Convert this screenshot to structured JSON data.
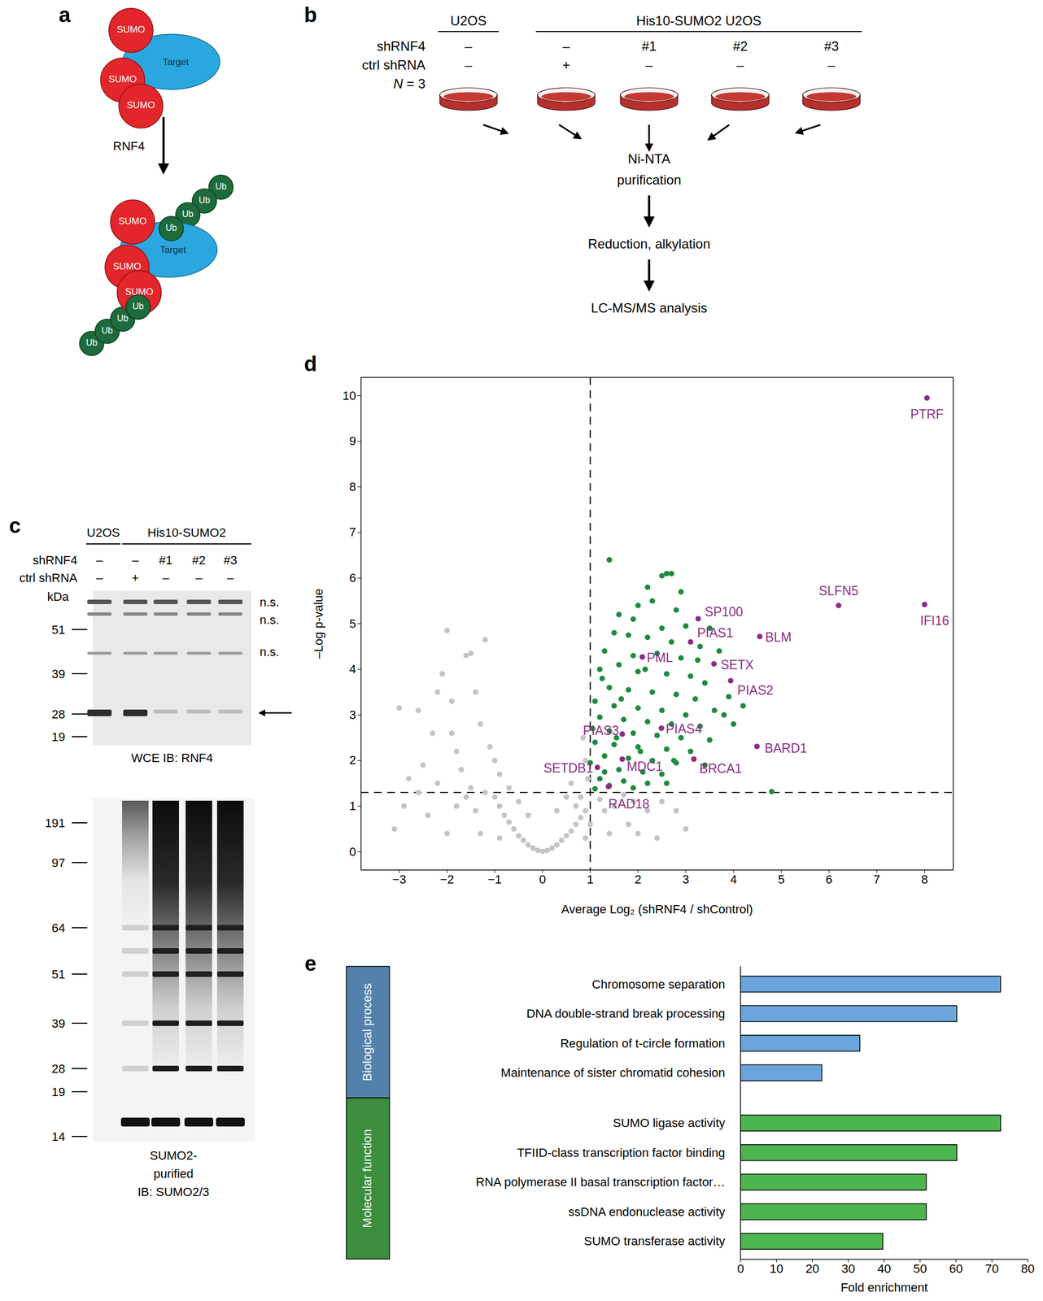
{
  "panel_labels": [
    "a",
    "b",
    "c",
    "d",
    "e"
  ],
  "panel_a": {
    "before": {
      "target": "Target",
      "modifiers": [
        "SUMO",
        "SUMO",
        "SUMO"
      ]
    },
    "enzyme": "RNF4",
    "after": {
      "target": "Target",
      "modifiers": [
        "SUMO",
        "SUMO",
        "SUMO"
      ],
      "ubiquitin_chains": [
        [
          "Ub",
          "Ub",
          "Ub",
          "Ub"
        ],
        [
          "Ub",
          "Ub",
          "Ub",
          "Ub"
        ]
      ]
    }
  },
  "panel_b": {
    "header_groups": [
      {
        "label": "U2OS",
        "lanes": 1
      },
      {
        "label": "His10-SUMO2 U2OS",
        "lanes": 4
      }
    ],
    "rows": [
      {
        "label": "shRNF4",
        "values": [
          "–",
          "–",
          "#1",
          "#2",
          "#3"
        ]
      },
      {
        "label": "ctrl shRNA",
        "values": [
          "–",
          "+",
          "–",
          "–",
          "–"
        ]
      }
    ],
    "replicates": "N = 3",
    "steps": [
      "Ni-NTA\npurification",
      "Reduction, alkylation",
      "LC-MS/MS analysis"
    ]
  },
  "panel_c": {
    "header_groups": [
      {
        "label": "U2OS",
        "lanes": 1
      },
      {
        "label": "His10-SUMO2",
        "lanes": 4
      }
    ],
    "rows": [
      {
        "label": "shRNF4",
        "values": [
          "–",
          "–",
          "#1",
          "#2",
          "#3"
        ]
      },
      {
        "label": "ctrl shRNA",
        "values": [
          "–",
          "+",
          "–",
          "–",
          "–"
        ]
      }
    ],
    "blots": [
      {
        "unit_label": "kDa",
        "markers": [
          51,
          39,
          28,
          19
        ],
        "annotations": [
          "n.s.",
          "n.s.",
          "n.s."
        ],
        "caption": "WCE IB: RNF4"
      },
      {
        "markers": [
          191,
          97,
          64,
          51,
          39,
          28,
          19,
          14
        ],
        "caption": "SUMO2-\npurified\nIB: SUMO2/3"
      }
    ]
  },
  "chart_data": [
    {
      "type": "scatter",
      "xlabel": "Average Log₂ (shRNF4 / shControl)",
      "ylabel": "–Log p-value",
      "xlim": [
        -3.8,
        8.6
      ],
      "ylim": [
        -0.4,
        10.4
      ],
      "xticks": [
        -3,
        -2,
        -1,
        0,
        1,
        2,
        3,
        4,
        5,
        6,
        7,
        8
      ],
      "yticks": [
        0,
        1,
        2,
        3,
        4,
        5,
        6,
        7,
        8,
        9,
        10
      ],
      "thresholds": {
        "x": 1,
        "y": 1.3
      },
      "series": [
        {
          "color": "#c4c4c4",
          "x": [
            -3.0,
            -2.8,
            -2.6,
            -2.3,
            -2.1,
            -2.0,
            -1.9,
            -1.8,
            -1.6,
            -1.5,
            -1.4,
            -1.2,
            -1.3,
            -2.5,
            -2.2,
            -1.7,
            -1.1,
            -0.9,
            -1.5,
            -3.1,
            -2.9,
            -2.0,
            -1.8,
            -1.0,
            -0.8,
            -1.4,
            -2.4,
            -0.6,
            -0.5,
            -0.4,
            -0.3,
            -0.2,
            -0.1,
            0.0,
            0.1,
            0.2,
            0.3,
            0.4,
            0.5,
            0.6,
            0.7,
            0.8,
            0.9,
            -0.7,
            -0.9,
            -1.2,
            -1.6,
            -2.6,
            1.0,
            1.3,
            1.5,
            1.8,
            2.0,
            2.2,
            2.5,
            2.8,
            3.0,
            1.2,
            0.8,
            0.95,
            0.9,
            0.85,
            0.6,
            0.7,
            -0.3,
            0.3,
            -0.5,
            0.5,
            1.9,
            2.4,
            -1.3,
            -0.9,
            0.9,
            1.4,
            -1.9,
            -2.2,
            -1.0,
            -0.7,
            1.7
          ],
          "y": [
            3.15,
            1.6,
            3.1,
            2.6,
            3.9,
            4.85,
            3.3,
            2.2,
            4.3,
            4.35,
            3.5,
            4.65,
            2.8,
            1.9,
            1.5,
            1.8,
            2.3,
            1.7,
            1.4,
            0.5,
            1.0,
            0.4,
            1.0,
            1.2,
            0.8,
            0.9,
            0.8,
            0.5,
            0.35,
            0.25,
            0.15,
            0.08,
            0.03,
            0.01,
            0.03,
            0.08,
            0.15,
            0.25,
            0.35,
            0.45,
            0.6,
            0.75,
            0.9,
            0.65,
            1.0,
            1.3,
            1.2,
            1.3,
            0.6,
            0.9,
            1.0,
            0.6,
            0.4,
            0.9,
            1.1,
            0.9,
            0.5,
            1.15,
            1.2,
            1.6,
            2.0,
            2.5,
            1.5,
            1.0,
            0.8,
            0.9,
            1.1,
            1.2,
            1.1,
            0.3,
            0.4,
            0.3,
            0.3,
            0.4,
            2.6,
            3.5,
            2.0,
            1.4,
            1.25
          ]
        },
        {
          "color": "#1f8b3f",
          "x": [
            1.4,
            2.6,
            2.7,
            2.5,
            2.2,
            2.9,
            1.6,
            2.0,
            2.3,
            2.8,
            1.9,
            2.5,
            3.0,
            3.5,
            1.5,
            1.8,
            2.2,
            2.7,
            3.3,
            1.3,
            1.9,
            2.4,
            2.9,
            3.7,
            1.2,
            1.6,
            2.0,
            2.6,
            3.1,
            3.4,
            1.4,
            1.8,
            2.3,
            2.8,
            3.2,
            3.9,
            1.1,
            1.5,
            2.0,
            2.5,
            3.0,
            3.6,
            1.2,
            1.7,
            2.2,
            2.7,
            3.3,
            4.0,
            1.05,
            1.4,
            1.9,
            2.4,
            2.9,
            3.5,
            1.1,
            1.5,
            2.0,
            2.6,
            3.1,
            1.3,
            1.8,
            2.3,
            2.8,
            3.4,
            1.0,
            1.6,
            2.1,
            2.5,
            1.2,
            1.7,
            2.2,
            1.4,
            1.9,
            1.1,
            2.6,
            4.8,
            3.8,
            2.15,
            1.25,
            4.2,
            3.25,
            1.55,
            2.75,
            1.3,
            2.05,
            1.65
          ],
          "y": [
            6.4,
            6.1,
            6.1,
            6.05,
            5.8,
            5.7,
            5.2,
            5.4,
            5.5,
            5.3,
            5.1,
            4.9,
            4.95,
            4.9,
            4.8,
            4.75,
            4.7,
            4.6,
            4.5,
            4.4,
            4.3,
            4.35,
            4.25,
            4.4,
            4.0,
            4.1,
            3.95,
            3.9,
            3.85,
            3.7,
            3.6,
            3.55,
            3.5,
            3.45,
            3.35,
            3.4,
            3.3,
            3.2,
            3.15,
            3.1,
            3.0,
            3.1,
            2.95,
            2.9,
            2.85,
            2.8,
            2.75,
            2.8,
            2.7,
            2.65,
            2.6,
            2.55,
            2.5,
            2.45,
            2.4,
            2.35,
            2.3,
            2.25,
            2.2,
            2.1,
            2.05,
            2.0,
            1.95,
            1.9,
            1.95,
            1.8,
            1.75,
            1.7,
            1.6,
            1.55,
            1.5,
            1.45,
            1.4,
            1.38,
            1.5,
            1.32,
            3.0,
            4.0,
            3.8,
            3.2,
            4.2,
            2.5,
            2.0,
            1.75,
            2.2,
            3.35
          ]
        },
        {
          "color": "#8b2c87",
          "labels": [
            "PTRF",
            "SLFN5",
            "IFI16",
            "SP100",
            "PIAS1",
            "BLM",
            "PML",
            "SETX",
            "PIAS2",
            "PIAS4",
            "PIAS3",
            "BARD1",
            "BRCA1",
            "MDC1",
            "SETDB1",
            "RAD18"
          ],
          "x": [
            8.05,
            6.2,
            8.0,
            3.26,
            3.1,
            4.55,
            2.09,
            3.59,
            3.94,
            2.49,
            1.67,
            4.49,
            3.17,
            1.67,
            1.15,
            1.38
          ],
          "y": [
            9.95,
            5.4,
            5.42,
            5.11,
            4.6,
            4.72,
            4.27,
            4.12,
            3.75,
            2.71,
            2.58,
            2.31,
            2.03,
            2.03,
            1.85,
            1.43
          ]
        }
      ]
    },
    {
      "type": "bar",
      "orientation": "horizontal",
      "xlabel": "Fold enrichment",
      "xlim": [
        0,
        80
      ],
      "xticks": [
        0,
        10,
        20,
        30,
        40,
        50,
        60,
        70,
        80
      ],
      "groups": [
        {
          "name": "Biological process",
          "color": "#6aa6dc",
          "categories": [
            "Chromosome separation",
            "DNA double-strand break processing",
            "Regulation of t-circle formation",
            "Maintenance of sister chromatid cohesion"
          ],
          "values": [
            72.5,
            60.3,
            33.3,
            22.7
          ]
        },
        {
          "name": "Molecular function",
          "color": "#4db54e",
          "categories": [
            "SUMO ligase activity",
            "TFIID-class transcription factor binding",
            "RNA polymerase II basal transcription factor…",
            "ssDNA endonuclease activity",
            "SUMO transferase activity"
          ],
          "values": [
            72.5,
            60.3,
            51.8,
            51.8,
            39.7
          ]
        }
      ]
    }
  ]
}
